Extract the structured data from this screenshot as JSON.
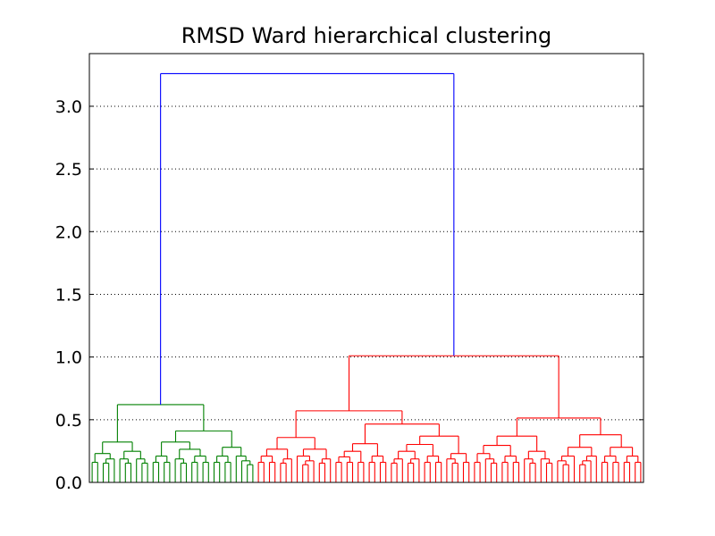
{
  "chart_data": {
    "type": "dendrogram",
    "title": "RMSD Ward hierarchical clustering",
    "xlabel": "",
    "ylabel": "",
    "ylim": [
      0,
      3.42
    ],
    "yticks": [
      "0.0",
      "0.5",
      "1.0",
      "1.5",
      "2.0",
      "2.5",
      "3.0"
    ],
    "y_grid": "dotted",
    "leaf_count": 100,
    "colors": {
      "root": "#0000ff",
      "cluster_1": "#008000",
      "cluster_2": "#ff0000"
    },
    "nodes": {
      "root": {
        "height": 3.26
      },
      "cluster_1": {
        "color": "cluster_1",
        "height": 0.62,
        "leaves": 30
      },
      "cluster_2": {
        "color": "cluster_2",
        "height": 1.01,
        "leaves": 70
      }
    }
  }
}
